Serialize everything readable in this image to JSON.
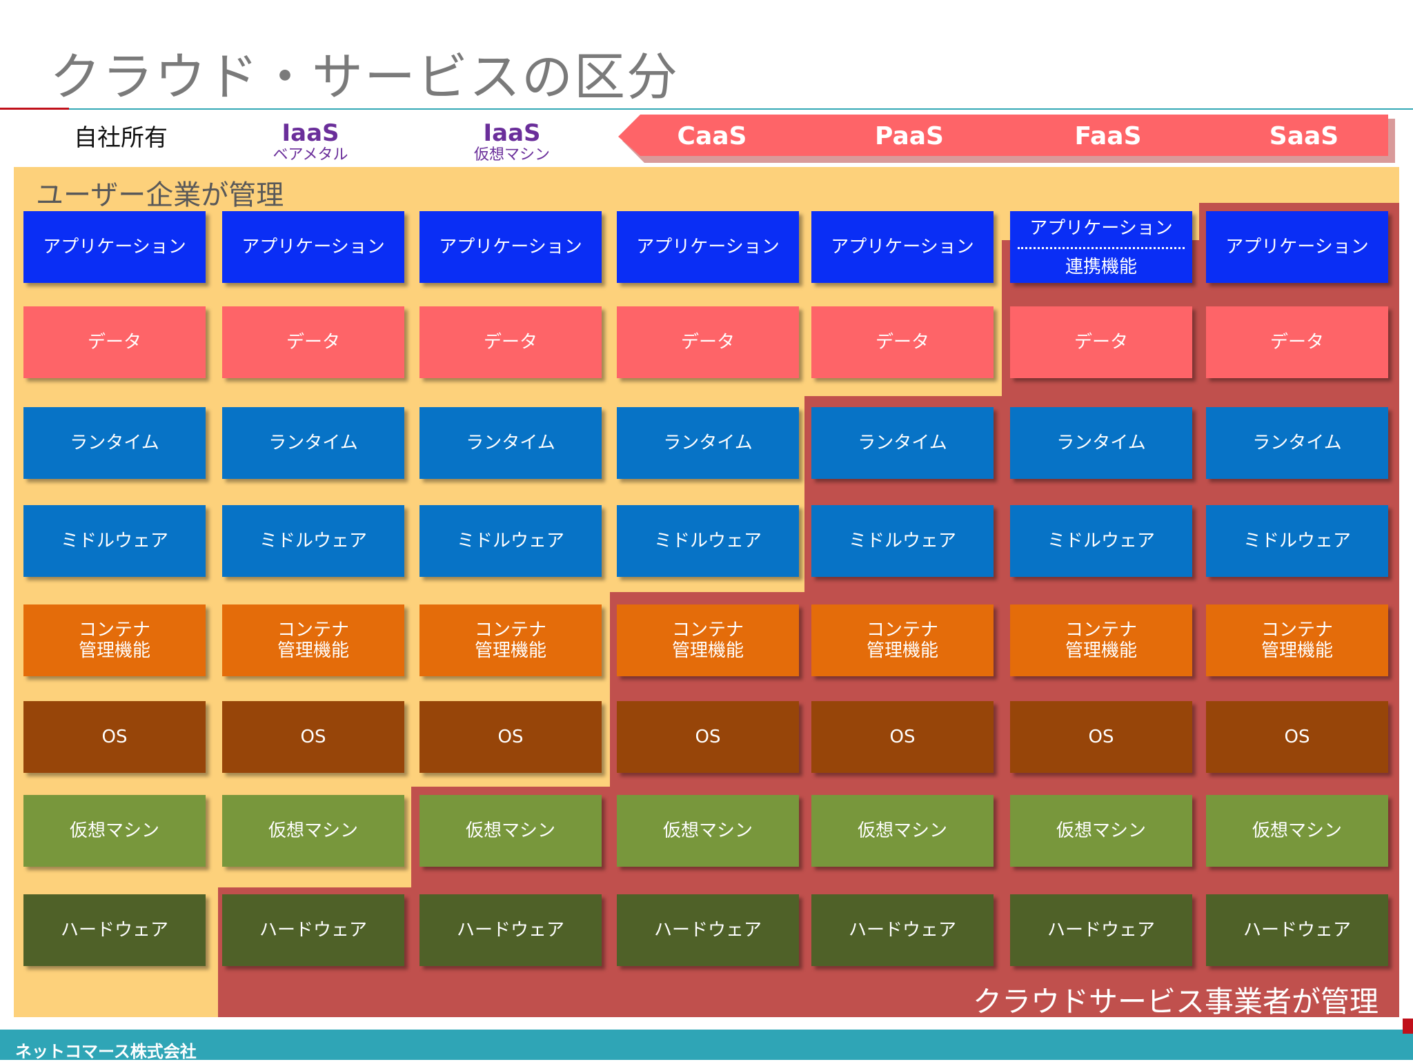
{
  "title": "クラウド・サービスの区分",
  "columns": [
    {
      "name": "自社所有",
      "sub": ""
    },
    {
      "name": "IaaS",
      "sub": "ベアメタル"
    },
    {
      "name": "IaaS",
      "sub": "仮想マシン"
    },
    {
      "name": "CaaS",
      "sub": ""
    },
    {
      "name": "PaaS",
      "sub": ""
    },
    {
      "name": "FaaS",
      "sub": ""
    },
    {
      "name": "SaaS",
      "sub": ""
    }
  ],
  "user_managed_label": "ユーザー企業が管理",
  "provider_managed_label": "クラウドサービス事業者が管理",
  "layers": [
    {
      "label": "アプリケーション",
      "color": "#0a2ef5"
    },
    {
      "label": "データ",
      "color": "#fe6468"
    },
    {
      "label": "ランタイム",
      "color": "#0773c6"
    },
    {
      "label": "ミドルウェア",
      "color": "#0773c6"
    },
    {
      "label": "コンテナ\n管理機能",
      "color": "#e46c0a"
    },
    {
      "label": "OS",
      "color": "#974509"
    },
    {
      "label": "仮想マシン",
      "color": "#78973c"
    },
    {
      "label": "ハードウェア",
      "color": "#4f6128"
    }
  ],
  "faas_app": {
    "top": "アプリケーション",
    "bottom": "連携機能"
  },
  "colors": {
    "user_area": "#fdd17b",
    "provider_area": "#c0504d",
    "arrow": "#fe6468",
    "footer": "#2fa5b6"
  },
  "footer_text": "ネットコマース株式会社"
}
